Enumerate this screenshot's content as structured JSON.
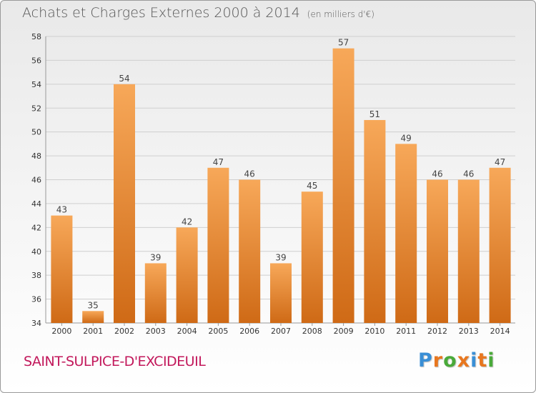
{
  "title": "Achats et Charges Externes 2000 à 2014",
  "unit": "(en milliers d'€)",
  "city": "SAINT-SULPICE-D'EXCIDEUIL",
  "logo": {
    "letters": [
      "P",
      "r",
      "o",
      "x",
      "i",
      "t",
      "i"
    ],
    "colors": [
      "#3a8fd6",
      "#e8771f",
      "#4aaa3a",
      "#e8771f",
      "#3a8fd6",
      "#e8771f",
      "#4aaa3a"
    ]
  },
  "colors": {
    "bar_top": "#f7a859",
    "bar_bottom": "#cf6a16",
    "city": "#c2185b",
    "grid": "#cfcfcf",
    "text": "#555555"
  },
  "chart_data": {
    "type": "bar",
    "title": "Achats et Charges Externes 2000 à 2014",
    "subtitle": "(en milliers d'€)",
    "categories": [
      "2000",
      "2001",
      "2002",
      "2003",
      "2004",
      "2005",
      "2006",
      "2007",
      "2008",
      "2009",
      "2010",
      "2011",
      "2012",
      "2013",
      "2014"
    ],
    "values": [
      43,
      35,
      54,
      39,
      42,
      47,
      46,
      39,
      45,
      57,
      51,
      49,
      46,
      46,
      47
    ],
    "ylim": [
      34,
      58
    ],
    "yticks": [
      34,
      36,
      38,
      40,
      42,
      44,
      46,
      48,
      50,
      52,
      54,
      56,
      58
    ],
    "grid": true,
    "xlabel": "",
    "ylabel": ""
  }
}
